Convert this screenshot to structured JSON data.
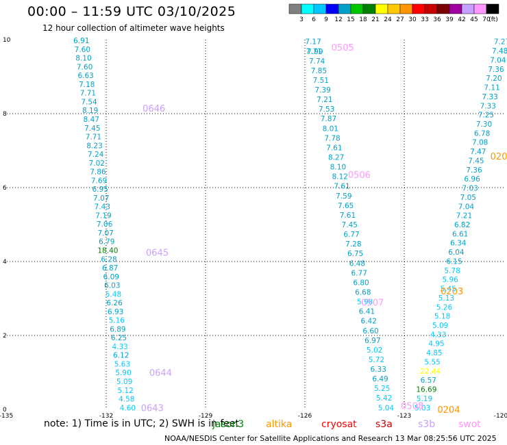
{
  "header": {
    "title": "00:00 – 11:59 UTC 03/10/2025",
    "subtitle": "12 hour collection of altimeter wave heights"
  },
  "colorbar": {
    "swatches": [
      "#808080",
      "#00ffff",
      "#00c8ff",
      "#0000ff",
      "#00a0c8",
      "#00c800",
      "#008000",
      "#ffff00",
      "#ffc800",
      "#ff9600",
      "#ff0000",
      "#c80000",
      "#780000",
      "#a000a0",
      "#c8a0ff",
      "#ff96ff",
      "#000000"
    ],
    "labels": [
      "3",
      "6",
      "9",
      "12",
      "15",
      "18",
      "21",
      "24",
      "27",
      "30",
      "33",
      "36",
      "39",
      "42",
      "45",
      "70",
      "(ft)"
    ]
  },
  "map": {
    "x_ticks": [
      "-135",
      "-132",
      "-129",
      "-126",
      "-123",
      "-120"
    ],
    "y_ticks": [
      "0",
      "2",
      "4",
      "6",
      "8",
      "10"
    ]
  },
  "tracks": [
    {
      "id": "0643",
      "lon": -130.95,
      "lat": 0.05,
      "color": "#c8a0ff"
    },
    {
      "id": "0644",
      "lon": -130.7,
      "lat": 1.0,
      "color": "#c8a0ff"
    },
    {
      "id": "0645",
      "lon": -130.8,
      "lat": 4.25,
      "color": "#c8a0ff"
    },
    {
      "id": "0646",
      "lon": -130.9,
      "lat": 8.15,
      "color": "#c8a0ff"
    },
    {
      "id": "0505",
      "lon": -125.2,
      "lat": 9.8,
      "color": "#ff96ff"
    },
    {
      "id": "0506",
      "lon": -124.7,
      "lat": 6.35,
      "color": "#ff96ff"
    },
    {
      "id": "0507",
      "lon": -124.3,
      "lat": 2.9,
      "color": "#ff96ff"
    },
    {
      "id": "0508",
      "lon": -123.1,
      "lat": 0.1,
      "color": "#ff96ff"
    },
    {
      "id": "0203",
      "lon": -121.9,
      "lat": 3.2,
      "color": "#ff9600"
    },
    {
      "id": "0204",
      "lon": -122.0,
      "lat": 0.0,
      "color": "#ff9600"
    },
    {
      "id": "020",
      "lon": -120.4,
      "lat": 6.85,
      "color": "#ff9600"
    }
  ],
  "pass_a": {
    "lon_start": -132.75,
    "lon_end": -131.35,
    "lat_start": 9.98,
    "lat_end": 0.05,
    "values": [
      "6.91",
      "7.60",
      "8.10",
      "7.60",
      "6.63",
      "7.18",
      "7.71",
      "7.54",
      "8.19",
      "8.47",
      "7.45",
      "7.71",
      "8.23",
      "7.24",
      "7.02",
      "7.86",
      "7.69",
      "6.95",
      "7.07",
      "7.43",
      "7.19",
      "7.06",
      "7.07",
      "6.79",
      "18.40",
      "6.28",
      "6.87",
      "6.09",
      "6.03",
      "5.48",
      "6.26",
      "6.93",
      "5.16",
      "6.89",
      "6.25",
      "4.33",
      "6.12",
      "5.63",
      "5.90",
      "5.09",
      "5.12",
      "4.58",
      "4.60"
    ],
    "colors": [
      "#00a0c8",
      "#00a0c8",
      "#00a0c8",
      "#00a0c8",
      "#00a0c8",
      "#00a0c8",
      "#00a0c8",
      "#00a0c8",
      "#00a0c8",
      "#00a0c8",
      "#00a0c8",
      "#00a0c8",
      "#00a0c8",
      "#00a0c8",
      "#00a0c8",
      "#00a0c8",
      "#00a0c8",
      "#00a0c8",
      "#00a0c8",
      "#00a0c8",
      "#00a0c8",
      "#00a0c8",
      "#00a0c8",
      "#00a0c8",
      "#008000",
      "#00a0c8",
      "#00a0c8",
      "#00a0c8",
      "#00a0c8",
      "#00c8ff",
      "#00a0c8",
      "#00a0c8",
      "#00c8ff",
      "#00a0c8",
      "#00a0c8",
      "#00c8ff",
      "#00a0c8",
      "#00c8ff",
      "#00c8ff",
      "#00c8ff",
      "#00c8ff",
      "#00c8ff",
      "#00c8ff"
    ]
  },
  "pass_b": {
    "lon_start": -125.75,
    "lon_end": -123.55,
    "lat_start": 9.95,
    "lat_end": 0.05,
    "values": [
      "7.17",
      "7.99",
      "7.74",
      "7.85",
      "7.51",
      "7.39",
      "7.21",
      "7.53",
      "7.87",
      "8.01",
      "7.78",
      "7.61",
      "8.27",
      "8.10",
      "8.12",
      "7.61",
      "7.59",
      "7.65",
      "7.61",
      "7.45",
      "6.77",
      "7.28",
      "6.75",
      "6.48",
      "6.77",
      "6.80",
      "6.68",
      "5.98",
      "6.41",
      "6.42",
      "6.60",
      "6.97",
      "5.02",
      "5.72",
      "6.33",
      "6.49",
      "5.25",
      "5.42",
      "5.04"
    ],
    "colors": [
      "#00a0c8",
      "#00a0c8",
      "#00a0c8",
      "#00a0c8",
      "#00a0c8",
      "#00a0c8",
      "#00a0c8",
      "#00a0c8",
      "#00a0c8",
      "#00a0c8",
      "#00a0c8",
      "#00a0c8",
      "#00a0c8",
      "#00a0c8",
      "#00a0c8",
      "#00a0c8",
      "#00a0c8",
      "#00a0c8",
      "#00a0c8",
      "#00a0c8",
      "#00a0c8",
      "#00a0c8",
      "#00a0c8",
      "#00a0c8",
      "#00a0c8",
      "#00a0c8",
      "#00a0c8",
      "#00c8ff",
      "#00a0c8",
      "#00a0c8",
      "#00a0c8",
      "#00a0c8",
      "#00c8ff",
      "#00c8ff",
      "#00a0c8",
      "#00a0c8",
      "#00c8ff",
      "#00c8ff",
      "#00c8ff"
    ],
    "extra_values": [
      "7.71"
    ]
  },
  "pass_c": {
    "lon_start": -120.05,
    "lon_end": -122.45,
    "lat_start": 9.95,
    "lat_end": 0.05,
    "values": [
      "7.27",
      "7.48",
      "7.04",
      "7.36",
      "7.20",
      "7.11",
      "7.33",
      "7.33",
      "7.25",
      "7.30",
      "6.78",
      "7.08",
      "7.47",
      "7.45",
      "7.36",
      "6.96",
      "7.03",
      "7.05",
      "7.04",
      "7.21",
      "6.82",
      "6.61",
      "6.34",
      "6.04",
      "6.15",
      "5.78",
      "5.96",
      "5.45",
      "5.13",
      "5.26",
      "5.18",
      "5.09",
      "4.33",
      "4.95",
      "4.85",
      "5.55",
      "22.44",
      "6.57",
      "16.69",
      "5.19",
      "5.03"
    ],
    "colors": [
      "#00a0c8",
      "#00a0c8",
      "#00a0c8",
      "#00a0c8",
      "#00a0c8",
      "#00a0c8",
      "#00a0c8",
      "#00a0c8",
      "#00a0c8",
      "#00a0c8",
      "#00a0c8",
      "#00a0c8",
      "#00a0c8",
      "#00a0c8",
      "#00a0c8",
      "#00a0c8",
      "#00a0c8",
      "#00a0c8",
      "#00a0c8",
      "#00a0c8",
      "#00a0c8",
      "#00a0c8",
      "#00a0c8",
      "#00a0c8",
      "#00a0c8",
      "#00c8ff",
      "#00c8ff",
      "#00c8ff",
      "#00c8ff",
      "#00c8ff",
      "#00c8ff",
      "#00c8ff",
      "#00c8ff",
      "#00c8ff",
      "#00c8ff",
      "#00c8ff",
      "#ffff00",
      "#00a0c8",
      "#008000",
      "#00c8ff",
      "#00c8ff"
    ]
  },
  "note": "note: 1) Time is in UTC; 2) SWH is in feet",
  "legend": [
    {
      "name": "jason3",
      "color": "#008000"
    },
    {
      "name": "altika",
      "color": "#ff9600"
    },
    {
      "name": "cryosat",
      "color": "#ff0000"
    },
    {
      "name": "s3a",
      "color": "#c80000"
    },
    {
      "name": "s3b",
      "color": "#c8a0ff"
    },
    {
      "name": "swot",
      "color": "#ff96ff"
    }
  ],
  "footer": "NOAA/NESDIS Center for Satellite Applications and Research    13 Mar 08:25:56 UTC 2025"
}
